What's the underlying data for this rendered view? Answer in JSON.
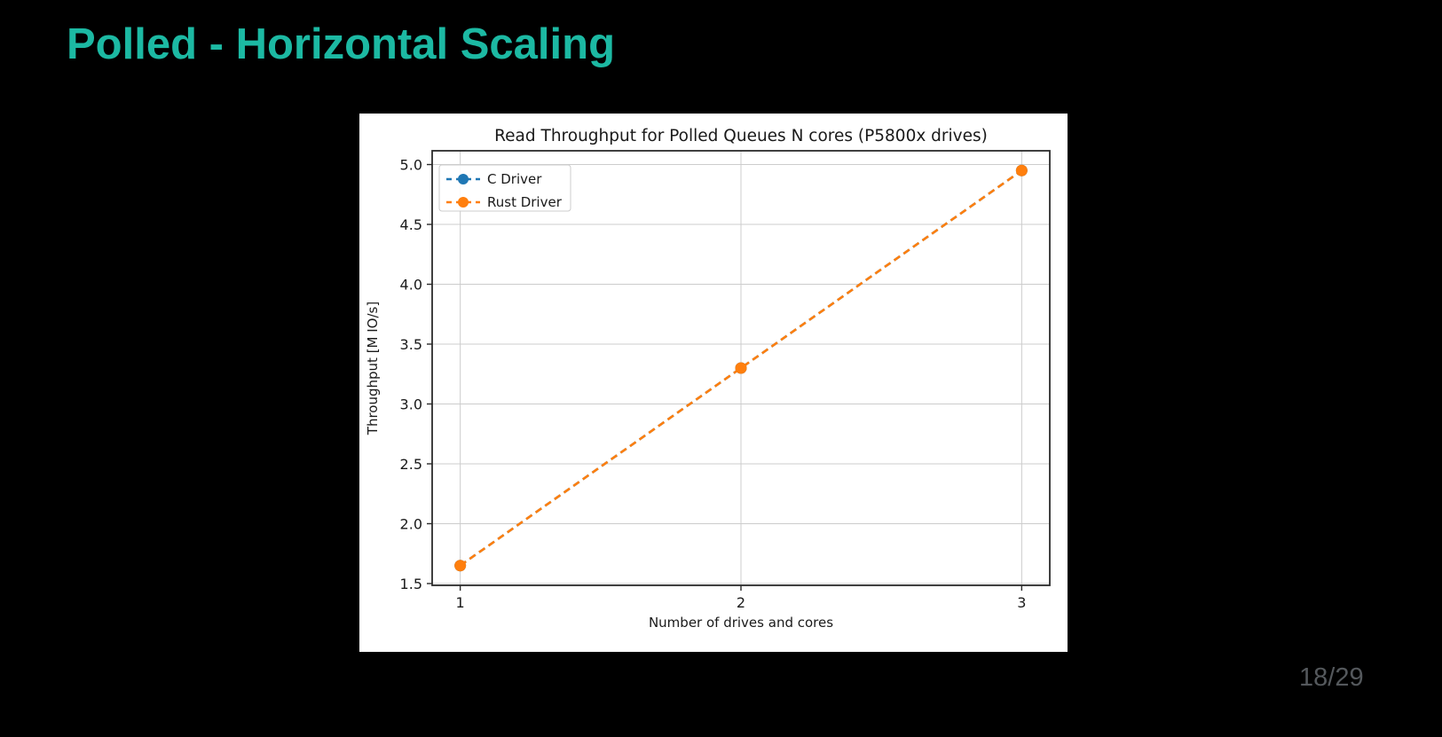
{
  "slide": {
    "title": "Polled - Horizontal Scaling",
    "title_color": "#1cb9a3",
    "background_color": "#000000",
    "page_number": "18/29"
  },
  "chart_data": {
    "type": "line",
    "title": "Read Throughput for Polled Queues N cores (P5800x drives)",
    "xlabel": "Number of drives and cores",
    "ylabel": "Throughput [M IO/s]",
    "x": [
      1,
      2,
      3
    ],
    "series": [
      {
        "name": "C Driver",
        "color": "#1f77b4",
        "linestyle": "dashed",
        "marker": "circle",
        "values": [
          1.65,
          3.3,
          4.95
        ]
      },
      {
        "name": "Rust Driver",
        "color": "#ff7f0e",
        "linestyle": "dashed",
        "marker": "circle",
        "values": [
          1.65,
          3.3,
          4.95
        ]
      }
    ],
    "xlim": [
      0.9,
      3.1
    ],
    "ylim": [
      1.485,
      5.115
    ],
    "xticks": [
      1,
      2,
      3
    ],
    "yticks": [
      1.5,
      2.0,
      2.5,
      3.0,
      3.5,
      4.0,
      4.5,
      5.0
    ],
    "grid": true,
    "grid_color": "#cccccc",
    "spine_color": "#2b2b2b",
    "plot_background": "#ffffff",
    "legend_position": "upper left"
  }
}
